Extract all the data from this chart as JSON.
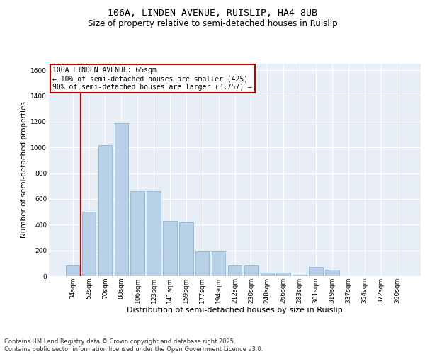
{
  "title_line1": "106A, LINDEN AVENUE, RUISLIP, HA4 8UB",
  "title_line2": "Size of property relative to semi-detached houses in Ruislip",
  "xlabel": "Distribution of semi-detached houses by size in Ruislip",
  "ylabel": "Number of semi-detached properties",
  "categories": [
    "34sqm",
    "52sqm",
    "70sqm",
    "88sqm",
    "106sqm",
    "123sqm",
    "141sqm",
    "159sqm",
    "177sqm",
    "194sqm",
    "212sqm",
    "230sqm",
    "248sqm",
    "266sqm",
    "283sqm",
    "301sqm",
    "319sqm",
    "337sqm",
    "354sqm",
    "372sqm",
    "390sqm"
  ],
  "values": [
    80,
    500,
    1020,
    1190,
    660,
    660,
    430,
    420,
    190,
    190,
    80,
    80,
    30,
    30,
    10,
    70,
    50,
    0,
    0,
    0,
    0
  ],
  "bar_color": "#b8d0e8",
  "bar_edgecolor": "#7aafd4",
  "vline_color": "#c00000",
  "vline_xindex": 1,
  "annotation_text": "106A LINDEN AVENUE: 65sqm\n← 10% of semi-detached houses are smaller (425)\n90% of semi-detached houses are larger (3,757) →",
  "annotation_box_edgecolor": "#c00000",
  "annotation_fontsize": 7,
  "ylim": [
    0,
    1650
  ],
  "yticks": [
    0,
    200,
    400,
    600,
    800,
    1000,
    1200,
    1400,
    1600
  ],
  "background_color": "#e8eef6",
  "grid_color": "#ffffff",
  "footer_text": "Contains HM Land Registry data © Crown copyright and database right 2025.\nContains public sector information licensed under the Open Government Licence v3.0.",
  "title_fontsize": 9.5,
  "subtitle_fontsize": 8.5,
  "xlabel_fontsize": 8,
  "ylabel_fontsize": 7.5,
  "tick_fontsize": 6.5,
  "footer_fontsize": 6
}
